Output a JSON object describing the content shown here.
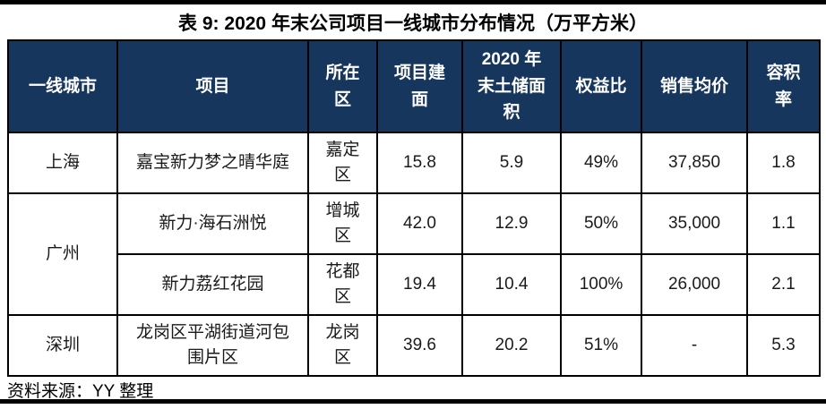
{
  "page": {
    "title": "表 9: 2020 年末公司项目一线城市分布情况（万平方米）",
    "source_note": "资料来源：YY 整理"
  },
  "colors": {
    "header_bg": "#17365d",
    "header_text": "#ffffff",
    "border": "#000000",
    "bar": "#000000"
  },
  "table": {
    "columns": [
      {
        "key": "city",
        "label": "一线城市"
      },
      {
        "key": "project",
        "label": "项目"
      },
      {
        "key": "district",
        "label": "所在区"
      },
      {
        "key": "gfa",
        "label": "项目建面"
      },
      {
        "key": "landbank",
        "label": "2020 年末土储面积"
      },
      {
        "key": "equity",
        "label": "权益比"
      },
      {
        "key": "asp",
        "label": "销售均价"
      },
      {
        "key": "plot_ratio",
        "label": "容积率"
      }
    ],
    "rows": [
      {
        "city": "上海",
        "project": "嘉宝新力梦之晴华庭",
        "district": "嘉定区",
        "gfa": "15.8",
        "landbank": "5.9",
        "equity": "49%",
        "asp": "37,850",
        "plot_ratio": "1.8"
      },
      {
        "city": "广州",
        "project": "新力·海石洲悦",
        "district": "增城区",
        "gfa": "42.0",
        "landbank": "12.9",
        "equity": "50%",
        "asp": "35,000",
        "plot_ratio": "1.1"
      },
      {
        "city": "广州",
        "project": "新力荔红花园",
        "district": "花都区",
        "gfa": "19.4",
        "landbank": "10.4",
        "equity": "100%",
        "asp": "26,000",
        "plot_ratio": "2.1"
      },
      {
        "city": "深圳",
        "project": "龙岗区平湖街道河包围片区",
        "district": "龙岗区",
        "gfa": "39.6",
        "landbank": "20.2",
        "equity": "51%",
        "asp": "-",
        "plot_ratio": "5.3"
      }
    ]
  }
}
